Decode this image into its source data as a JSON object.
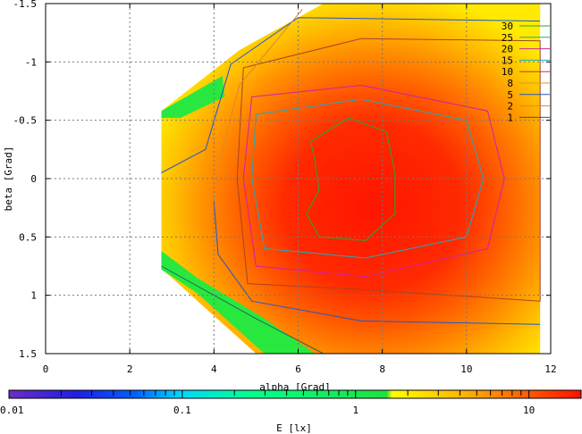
{
  "chart_data": {
    "type": "heatmap",
    "xlabel": "alpha [Grad]",
    "ylabel": "beta [Grad]",
    "xlim": [
      0,
      12
    ],
    "ylim": [
      1.5,
      -1.5
    ],
    "x_ticks": [
      0,
      2,
      4,
      6,
      8,
      10,
      12
    ],
    "y_ticks": [
      -1.5,
      -1,
      -0.5,
      0,
      0.5,
      1,
      1.5
    ],
    "y_tick_labels": [
      "-1.5",
      "-1",
      "-0.5",
      "0",
      "0.5",
      "1",
      "1.5"
    ],
    "grid": true,
    "data_extent": {
      "x_min": 2.75,
      "x_max": 11.75,
      "y_min": -1.5,
      "y_max": 1.5
    },
    "colorbar": {
      "label": "E [lx]",
      "scale": "log",
      "range": [
        0.01,
        20
      ],
      "tick_labels": [
        "0.01",
        "0.1",
        "1",
        "10"
      ],
      "tick_values": [
        0.01,
        0.1,
        1,
        10
      ]
    },
    "contour_levels": [
      {
        "value": 30,
        "label": "30",
        "color": "#22aa33"
      },
      {
        "value": 25,
        "label": "25",
        "color": "#22aa88"
      },
      {
        "value": 20,
        "label": "20",
        "color": "#cc22aa"
      },
      {
        "value": 15,
        "label": "15",
        "color": "#22aabb"
      },
      {
        "value": 10,
        "label": "10",
        "color": "#aa4422"
      },
      {
        "value": 8,
        "label": "8",
        "color": "#dd9922"
      },
      {
        "value": 5,
        "label": "5",
        "color": "#2255cc"
      },
      {
        "value": 2,
        "label": "2",
        "color": "#dd8833"
      },
      {
        "value": 1,
        "label": "1",
        "color": "#226655"
      }
    ],
    "legend_position": "top-right",
    "peak": {
      "alpha": 7.3,
      "beta": 0.0
    }
  }
}
